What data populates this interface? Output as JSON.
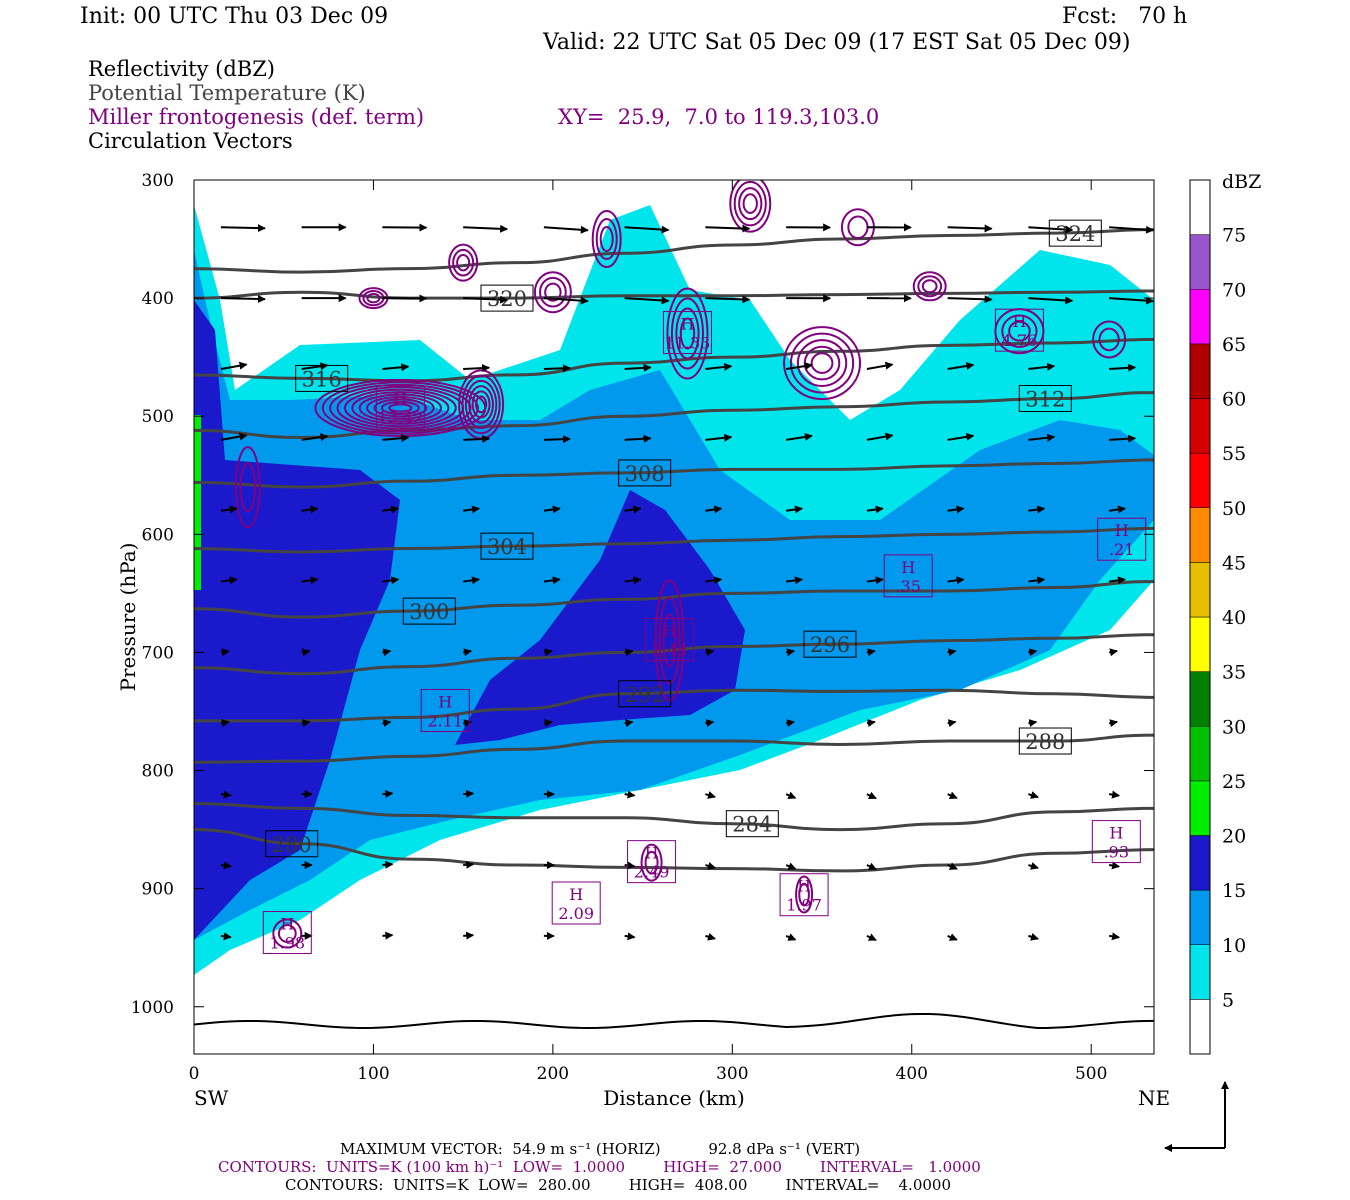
{
  "header": {
    "init": "Init: 00 UTC Thu 03 Dec 09",
    "fcst": "Fcst:   70 h",
    "valid": "Valid: 22 UTC Sat 05 Dec 09 (17 EST Sat 05 Dec 09)"
  },
  "legend": {
    "reflectivity": "Reflectivity (dBZ)",
    "theta": "Potential Temperature (K)",
    "miller": "Miller frontogenesis (def. term)",
    "xy": "XY=  25.9,  7.0 to 119.3,103.0",
    "vectors": "Circulation Vectors"
  },
  "colors": {
    "miller": "#800080",
    "theta": "#444444",
    "xy": "#800080"
  },
  "footer": {
    "max_vector": "MAXIMUM VECTOR:  54.9 m s⁻¹ (HORIZ)          92.8 dPa s⁻¹ (VERT)",
    "contours1": "CONTOURS:  UNITS=K (100 km h)⁻¹  LOW=  1.0000        HIGH=  27.000        INTERVAL=   1.0000",
    "contours2": "CONTOURS:  UNITS=K  LOW=  280.00        HIGH=  408.00        INTERVAL=    4.0000"
  },
  "chart_data": {
    "type": "heatmap",
    "title": "Reflectivity (dBZ), Potential Temperature (K), Miller frontogenesis (def. term), Circulation Vectors",
    "xlabel": "Distance (km)",
    "ylabel": "Pressure (hPa)",
    "xlim": [
      0,
      535
    ],
    "ylim": [
      1040,
      300
    ],
    "x_ticks": [
      "0",
      "100",
      "200",
      "300",
      "400",
      "500"
    ],
    "y_ticks": [
      "300",
      "400",
      "500",
      "600",
      "700",
      "800",
      "900",
      "1000"
    ],
    "x_end_labels": {
      "left": "SW",
      "right": "NE"
    },
    "colorbar": {
      "unit": "dBZ",
      "levels": [
        "5",
        "10",
        "15",
        "20",
        "25",
        "30",
        "35",
        "40",
        "45",
        "50",
        "55",
        "60",
        "65",
        "70",
        "75"
      ],
      "colors": [
        "#ffffff",
        "#00e5ec",
        "#0099ee",
        "#1a1acc",
        "#00ee00",
        "#00c000",
        "#008000",
        "#ffff00",
        "#e6c000",
        "#ff8c00",
        "#ff0000",
        "#d40000",
        "#b00000",
        "#ff00ff",
        "#9955cc",
        "#ffffff"
      ]
    },
    "theta_contours": [
      {
        "label": "280",
        "p": [
          850,
          862,
          875,
          880,
          882,
          883,
          885,
          880,
          870,
          867
        ]
      },
      {
        "label": "284",
        "p": [
          828,
          832,
          838,
          840,
          840,
          845,
          850,
          845,
          835,
          832
        ]
      },
      {
        "label": "288",
        "p": [
          793,
          792,
          788,
          782,
          775,
          775,
          778,
          775,
          775,
          770
        ]
      },
      {
        "label": "292",
        "p": [
          758,
          758,
          755,
          748,
          735,
          732,
          733,
          732,
          735,
          738
        ]
      },
      {
        "label": "296",
        "p": [
          713,
          718,
          712,
          705,
          700,
          695,
          693,
          690,
          688,
          685
        ]
      },
      {
        "label": "300",
        "p": [
          663,
          670,
          665,
          660,
          655,
          650,
          648,
          648,
          645,
          640
        ]
      },
      {
        "label": "304",
        "p": [
          612,
          615,
          612,
          610,
          608,
          605,
          602,
          600,
          598,
          595
        ]
      },
      {
        "label": "308",
        "p": [
          556,
          560,
          555,
          550,
          548,
          545,
          545,
          542,
          540,
          537
        ]
      },
      {
        "label": "312",
        "p": [
          512,
          518,
          512,
          508,
          500,
          495,
          492,
          488,
          485,
          480
        ]
      },
      {
        "label": "316",
        "p": [
          465,
          468,
          470,
          465,
          455,
          450,
          445,
          440,
          438,
          435
        ]
      },
      {
        "label": "320",
        "p": [
          400,
          395,
          400,
          400,
          398,
          398,
          397,
          396,
          395,
          394
        ]
      },
      {
        "label": "324",
        "p": [
          375,
          378,
          375,
          370,
          362,
          355,
          350,
          347,
          345,
          342
        ]
      }
    ],
    "theta_x": [
      0,
      60,
      120,
      180,
      240,
      300,
      360,
      420,
      480,
      535
    ],
    "frontogenesis_maxima": [
      {
        "label": "H",
        "value": "13.42",
        "x": 115,
        "p": 493
      },
      {
        "label": "H",
        "value": "11.33",
        "x": 275,
        "p": 430
      },
      {
        "label": "H",
        "value": "4.76",
        "x": 460,
        "p": 428
      },
      {
        "label": "H",
        "value": ".35",
        "x": 398,
        "p": 636
      },
      {
        "label": "H",
        "value": ".21",
        "x": 517,
        "p": 605
      },
      {
        "label": "H",
        "value": "3.48",
        "x": 265,
        "p": 690
      },
      {
        "label": "H",
        "value": "2.11",
        "x": 140,
        "p": 750
      },
      {
        "label": "H",
        "value": "2.49",
        "x": 255,
        "p": 878
      },
      {
        "label": "H",
        "value": "2.09",
        "x": 213,
        "p": 913
      },
      {
        "label": "H",
        "value": "1.97",
        "x": 340,
        "p": 906
      },
      {
        "label": "H",
        "value": "1.98",
        "x": 52,
        "p": 938
      },
      {
        "label": "H",
        "value": ".93",
        "x": 514,
        "p": 861
      }
    ],
    "grid": false,
    "legend_position": "right"
  }
}
